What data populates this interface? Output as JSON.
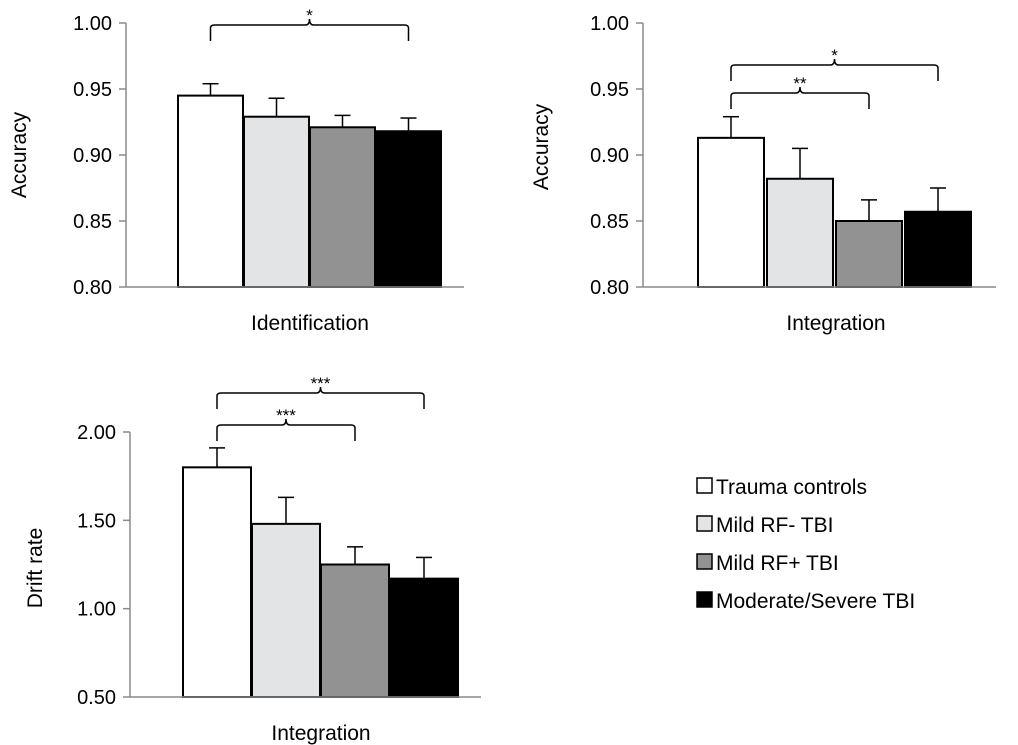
{
  "legend": [
    {
      "label": "Trauma controls",
      "color": "#ffffff"
    },
    {
      "label": "Mild RF- TBI",
      "color": "#e3e4e6"
    },
    {
      "label": "Mild RF+ TBI",
      "color": "#929292"
    },
    {
      "label": "Moderate/Severe TBI",
      "color": "#000000"
    }
  ],
  "chart_data": [
    {
      "type": "bar",
      "categories": [
        "Trauma controls",
        "Mild RF- TBI",
        "Mild RF+ TBI",
        "Moderate/Severe TBI"
      ],
      "values": [
        0.945,
        0.929,
        0.921,
        0.918
      ],
      "errors": [
        0.009,
        0.014,
        0.009,
        0.01
      ],
      "xlabel": "Identification",
      "ylabel": "Accuracy",
      "ylim": [
        0.8,
        1.0
      ],
      "yticks": [
        "0.80",
        "0.85",
        "0.90",
        "0.95",
        "1.00"
      ],
      "significance": [
        {
          "from": 0,
          "to": 3,
          "label": "*"
        }
      ]
    },
    {
      "type": "bar",
      "categories": [
        "Trauma controls",
        "Mild RF- TBI",
        "Mild RF+ TBI",
        "Moderate/Severe TBI"
      ],
      "values": [
        0.913,
        0.882,
        0.85,
        0.857
      ],
      "errors": [
        0.016,
        0.023,
        0.016,
        0.018
      ],
      "xlabel": "Integration",
      "ylabel": "Accuracy",
      "ylim": [
        0.8,
        1.0
      ],
      "yticks": [
        "0.80",
        "0.85",
        "0.90",
        "0.95",
        "1.00"
      ],
      "significance": [
        {
          "from": 0,
          "to": 3,
          "label": "*"
        },
        {
          "from": 0,
          "to": 2,
          "label": "**"
        }
      ]
    },
    {
      "type": "bar",
      "categories": [
        "Trauma controls",
        "Mild RF- TBI",
        "Mild RF+ TBI",
        "Moderate/Severe TBI"
      ],
      "values": [
        1.8,
        1.48,
        1.25,
        1.17
      ],
      "errors": [
        0.11,
        0.15,
        0.1,
        0.12
      ],
      "xlabel": "Integration",
      "ylabel": "Drift rate",
      "ylim": [
        0.5,
        2.0
      ],
      "yticks": [
        "0.50",
        "1.00",
        "1.50",
        "2.00"
      ],
      "significance": [
        {
          "from": 0,
          "to": 3,
          "label": "***"
        },
        {
          "from": 0,
          "to": 2,
          "label": "***"
        }
      ]
    }
  ]
}
